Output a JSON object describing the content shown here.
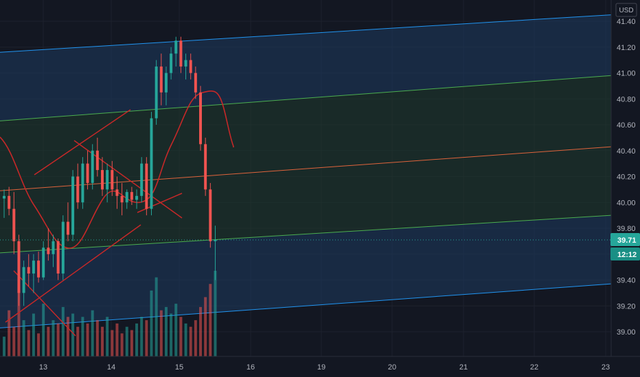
{
  "currency_label": "USD",
  "last_price_label": "39.71",
  "countdown_label": "12:12",
  "colors": {
    "background": "#131722",
    "grid": "#1e222d",
    "band_outer": "#1e3a5f",
    "band_inner": "#1f3b2e",
    "outer_line": "#2196f3",
    "inner_line": "#4caf50",
    "median_line": "#e0643c",
    "drawing": "#c62828",
    "up": "#26a69a",
    "down": "#ef5350",
    "price_badge": "#26a69a"
  },
  "chart_data": {
    "type": "candlestick",
    "x_tick_labels": [
      "13",
      "14",
      "15",
      "16",
      "19",
      "20",
      "21",
      "22",
      "23"
    ],
    "y_tick_labels": [
      "41.40",
      "41.20",
      "41.00",
      "40.80",
      "40.60",
      "40.40",
      "40.20",
      "40.00",
      "39.80",
      "39.60",
      "39.40",
      "39.20",
      "39.00"
    ],
    "ylim": [
      38.78,
      41.48
    ],
    "last_price": 39.71,
    "grid": true,
    "regression_channel": {
      "outer_upper": [
        41.16,
        41.45
      ],
      "inner_upper": [
        40.63,
        40.98
      ],
      "median": [
        40.09,
        40.43
      ],
      "inner_lower": [
        39.61,
        39.9
      ],
      "outer_lower": [
        39.03,
        39.37
      ]
    },
    "candles": [
      [
        40.03,
        40.1,
        39.88,
        40.05
      ],
      [
        40.05,
        40.12,
        39.9,
        39.95
      ],
      [
        39.95,
        40.08,
        39.6,
        39.7
      ],
      [
        39.7,
        39.75,
        39.2,
        39.3
      ],
      [
        39.3,
        39.55,
        39.2,
        39.5
      ],
      [
        39.5,
        39.6,
        39.35,
        39.45
      ],
      [
        39.45,
        39.6,
        39.3,
        39.55
      ],
      [
        39.55,
        39.62,
        39.38,
        39.42
      ],
      [
        39.42,
        39.7,
        39.4,
        39.65
      ],
      [
        39.65,
        39.8,
        39.55,
        39.6
      ],
      [
        39.6,
        39.75,
        39.5,
        39.7
      ],
      [
        39.7,
        39.72,
        39.4,
        39.45
      ],
      [
        39.45,
        39.9,
        39.4,
        39.85
      ],
      [
        39.85,
        40.0,
        39.7,
        39.75
      ],
      [
        39.75,
        40.25,
        39.7,
        40.2
      ],
      [
        40.2,
        40.3,
        39.95,
        40.0
      ],
      [
        40.0,
        40.35,
        39.95,
        40.3
      ],
      [
        40.3,
        40.4,
        40.1,
        40.15
      ],
      [
        40.15,
        40.45,
        40.1,
        40.4
      ],
      [
        40.4,
        40.5,
        40.2,
        40.25
      ],
      [
        40.25,
        40.35,
        40.05,
        40.1
      ],
      [
        40.1,
        40.3,
        40.0,
        40.25
      ],
      [
        40.25,
        40.32,
        40.05,
        40.1
      ],
      [
        40.1,
        40.2,
        39.95,
        40.05
      ],
      [
        40.05,
        40.15,
        39.9,
        40.0
      ],
      [
        40.0,
        40.1,
        39.95,
        40.08
      ],
      [
        40.08,
        40.12,
        39.98,
        40.02
      ],
      [
        40.02,
        40.1,
        39.95,
        40.05
      ],
      [
        40.05,
        40.35,
        40.0,
        40.3
      ],
      [
        40.3,
        40.35,
        39.9,
        39.95
      ],
      [
        39.95,
        40.7,
        39.9,
        40.65
      ],
      [
        40.65,
        41.1,
        40.6,
        41.05
      ],
      [
        41.05,
        41.15,
        40.75,
        40.85
      ],
      [
        40.85,
        41.05,
        40.75,
        41.0
      ],
      [
        41.0,
        41.2,
        40.95,
        41.15
      ],
      [
        41.15,
        41.28,
        41.05,
        41.25
      ],
      [
        41.25,
        41.28,
        41.0,
        41.05
      ],
      [
        41.05,
        41.15,
        40.95,
        41.1
      ],
      [
        41.1,
        41.15,
        40.95,
        41.0
      ],
      [
        41.0,
        41.05,
        40.8,
        40.85
      ],
      [
        40.85,
        40.9,
        40.4,
        40.45
      ],
      [
        40.45,
        40.5,
        40.05,
        40.1
      ],
      [
        40.1,
        40.15,
        39.65,
        39.7
      ],
      [
        39.7,
        39.82,
        39.4,
        39.71
      ]
    ],
    "volumes": [
      6,
      14,
      9,
      22,
      11,
      8,
      13,
      7,
      16,
      9,
      11,
      10,
      15,
      12,
      13,
      9,
      12,
      10,
      14,
      11,
      9,
      12,
      8,
      10,
      7,
      9,
      8,
      10,
      12,
      11,
      20,
      24,
      14,
      15,
      13,
      16,
      12,
      10,
      9,
      11,
      15,
      18,
      22,
      26
    ]
  }
}
